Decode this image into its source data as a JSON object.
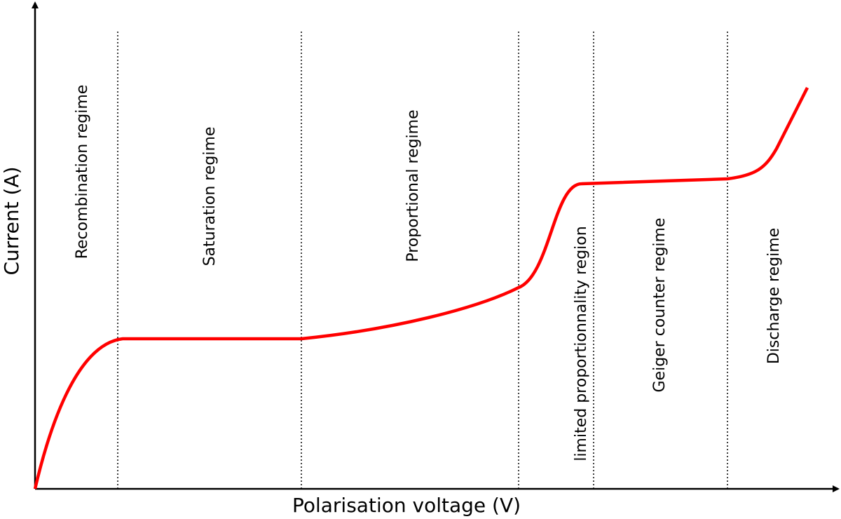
{
  "axes": {
    "x_label": "Polarisation voltage (V)",
    "y_label": "Current (A)"
  },
  "regions": [
    {
      "label": "Recombination regime"
    },
    {
      "label": "Saturation regime"
    },
    {
      "label": "Proportional regime"
    },
    {
      "label": "limited proportionnality region"
    },
    {
      "label": "Geiger counter regime"
    },
    {
      "label": "Discharge regime"
    }
  ]
}
